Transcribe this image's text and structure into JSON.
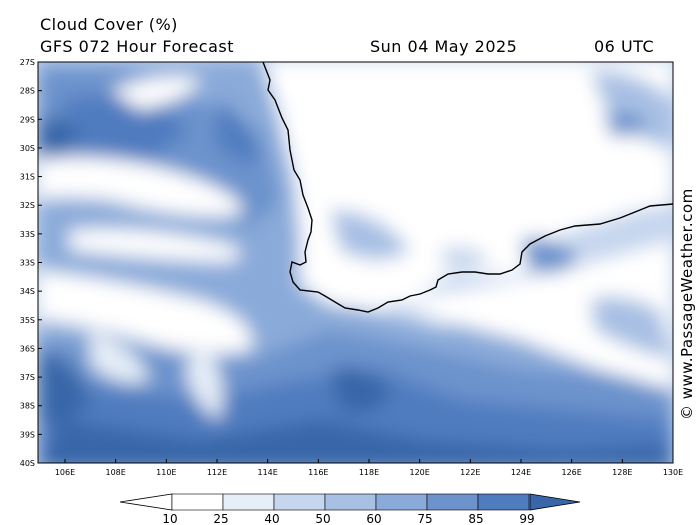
{
  "header": {
    "title": "Cloud Cover (%)",
    "model": "GFS 072 Hour Forecast",
    "date": "Sun 04 May 2025",
    "time": "06 UTC"
  },
  "credit": "© www.PassageWeather.com",
  "map": {
    "lat_labels": [
      "27S",
      "28S",
      "29S",
      "30S",
      "31S",
      "32S",
      "33S",
      "33S",
      "34S",
      "35S",
      "36S",
      "37S",
      "38S",
      "39S",
      "40S"
    ],
    "lon_labels": [
      "106E",
      "108E",
      "110E",
      "112E",
      "114E",
      "116E",
      "118E",
      "120E",
      "122E",
      "124E",
      "126E",
      "128E",
      "130E"
    ],
    "colors": {
      "c10": "#ffffff",
      "c25": "#e6eef8",
      "c40": "#c6d6ee",
      "c50": "#a8c0e4",
      "c60": "#8aaad9",
      "c75": "#6c93cc",
      "c85": "#4f7cbf",
      "c99": "#3866a8",
      "coast": "#000000"
    }
  },
  "legend": {
    "levels": [
      "10",
      "25",
      "40",
      "50",
      "60",
      "75",
      "85",
      "99"
    ]
  }
}
